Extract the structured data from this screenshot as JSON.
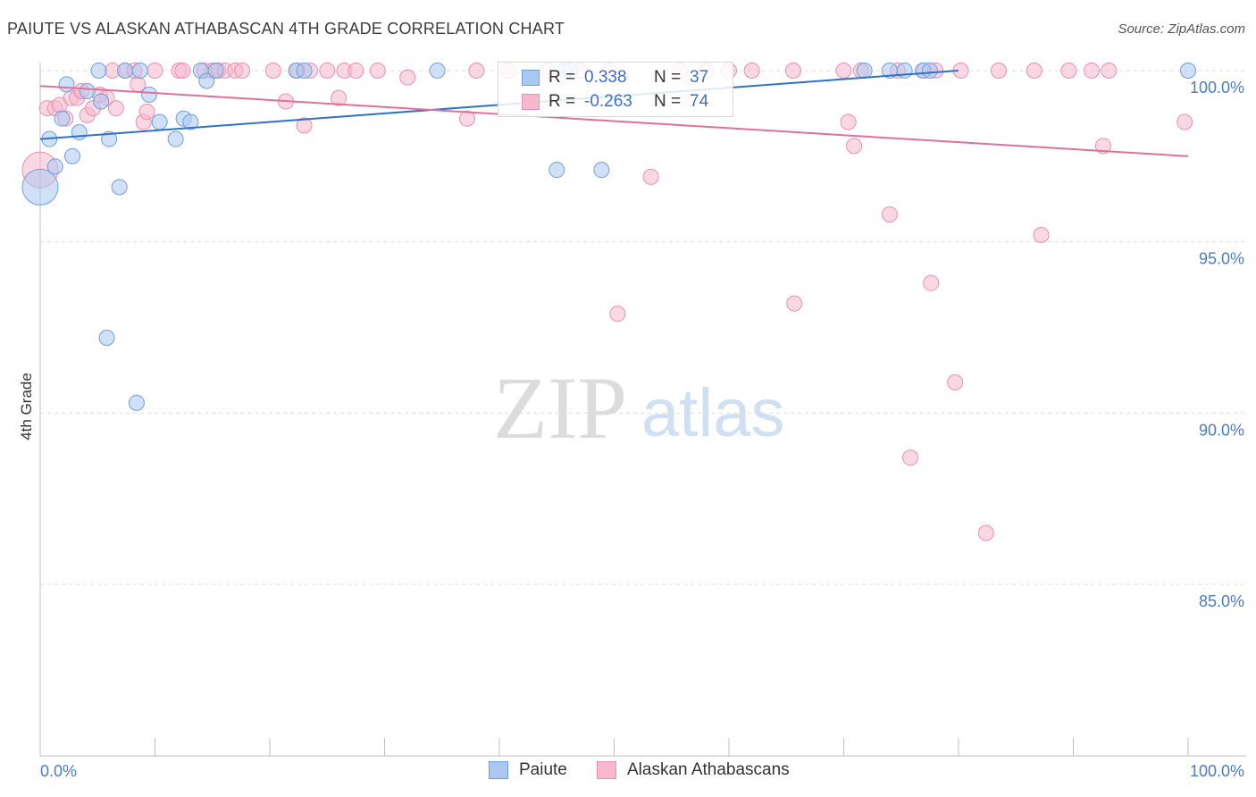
{
  "header": {
    "title": "PAIUTE VS ALASKAN ATHABASCAN 4TH GRADE CORRELATION CHART",
    "source": "Source: ZipAtlas.com"
  },
  "watermark": {
    "zip": "ZIP",
    "atlas": "atlas"
  },
  "legend": {
    "rows": [
      {
        "r_label": "R =",
        "r_value": "0.338",
        "n_label": "N =",
        "n_value": "37"
      },
      {
        "r_label": "R =",
        "r_value": "-0.263",
        "n_label": "N =",
        "n_value": "74"
      }
    ]
  },
  "bottom_legend": {
    "paiute": "Paiute",
    "alaskan": "Alaskan Athabascans"
  },
  "colors": {
    "paiute_fill": "#aac8f0",
    "paiute_stroke": "#6c9fe0",
    "paiute_line": "#2e72c8",
    "alaskan_fill": "#f6b8cc",
    "alaskan_stroke": "#eb8fae",
    "alaskan_line": "#e0709a",
    "tick_text": "#4a7cc9",
    "grid": "#dddddd"
  },
  "chart_data": {
    "type": "scatter",
    "title": "PAIUTE VS ALASKAN ATHABASCAN 4TH GRADE CORRELATION CHART",
    "xlabel": "",
    "ylabel": "4th Grade",
    "xlim": [
      0,
      100
    ],
    "ylim": [
      80.5,
      100.4
    ],
    "x_tick_labels": [
      "0.0%",
      "100.0%"
    ],
    "y_ticks": [
      {
        "value": 100,
        "label": "100.0%"
      },
      {
        "value": 95,
        "label": "95.0%"
      },
      {
        "value": 90,
        "label": "90.0%"
      },
      {
        "value": 85,
        "label": "85.0%"
      }
    ],
    "series": [
      {
        "name": "Paiute",
        "r": 0.338,
        "n": 37,
        "trend": {
          "x": [
            0,
            80
          ],
          "y": [
            98.0,
            100.0
          ]
        },
        "points": [
          {
            "x": 0.0,
            "y": 96.6,
            "big": true
          },
          {
            "x": 0.8,
            "y": 98.0
          },
          {
            "x": 1.3,
            "y": 97.2
          },
          {
            "x": 1.9,
            "y": 98.6
          },
          {
            "x": 2.3,
            "y": 99.6
          },
          {
            "x": 2.8,
            "y": 97.5
          },
          {
            "x": 3.4,
            "y": 98.2
          },
          {
            "x": 4.1,
            "y": 99.4
          },
          {
            "x": 5.1,
            "y": 100.0
          },
          {
            "x": 5.3,
            "y": 99.1
          },
          {
            "x": 6.0,
            "y": 98.0
          },
          {
            "x": 6.9,
            "y": 96.6
          },
          {
            "x": 7.4,
            "y": 100.0
          },
          {
            "x": 8.7,
            "y": 100.0
          },
          {
            "x": 9.5,
            "y": 99.3
          },
          {
            "x": 10.4,
            "y": 98.5
          },
          {
            "x": 11.8,
            "y": 98.0
          },
          {
            "x": 12.5,
            "y": 98.6
          },
          {
            "x": 13.1,
            "y": 98.5
          },
          {
            "x": 14.0,
            "y": 100.0
          },
          {
            "x": 14.5,
            "y": 99.7
          },
          {
            "x": 15.3,
            "y": 100.0
          },
          {
            "x": 22.3,
            "y": 100.0
          },
          {
            "x": 23.0,
            "y": 100.0
          },
          {
            "x": 34.6,
            "y": 100.0
          },
          {
            "x": 45.0,
            "y": 97.1
          },
          {
            "x": 45.7,
            "y": 100.0
          },
          {
            "x": 46.2,
            "y": 100.0
          },
          {
            "x": 48.9,
            "y": 97.1
          },
          {
            "x": 71.8,
            "y": 100.0
          },
          {
            "x": 74.0,
            "y": 100.0
          },
          {
            "x": 75.3,
            "y": 100.0
          },
          {
            "x": 76.9,
            "y": 100.0
          },
          {
            "x": 77.5,
            "y": 100.0
          },
          {
            "x": 100.0,
            "y": 100.0
          },
          {
            "x": 5.8,
            "y": 92.2
          },
          {
            "x": 8.4,
            "y": 90.3
          }
        ]
      },
      {
        "name": "Alaskan Athabascans",
        "r": -0.263,
        "n": 74,
        "trend": {
          "x": [
            0,
            100
          ],
          "y": [
            99.55,
            97.5
          ]
        },
        "points": [
          {
            "x": 0.0,
            "y": 97.1,
            "big": true
          },
          {
            "x": 0.6,
            "y": 98.9
          },
          {
            "x": 1.3,
            "y": 98.9
          },
          {
            "x": 1.7,
            "y": 99.0
          },
          {
            "x": 2.2,
            "y": 98.6
          },
          {
            "x": 2.7,
            "y": 99.2
          },
          {
            "x": 3.2,
            "y": 99.2
          },
          {
            "x": 3.6,
            "y": 99.4
          },
          {
            "x": 4.1,
            "y": 98.7
          },
          {
            "x": 4.6,
            "y": 98.9
          },
          {
            "x": 5.2,
            "y": 99.3
          },
          {
            "x": 5.8,
            "y": 99.2
          },
          {
            "x": 6.3,
            "y": 100.0
          },
          {
            "x": 6.6,
            "y": 98.9
          },
          {
            "x": 7.4,
            "y": 100.0
          },
          {
            "x": 8.2,
            "y": 100.0
          },
          {
            "x": 8.5,
            "y": 99.6
          },
          {
            "x": 9.0,
            "y": 98.5
          },
          {
            "x": 9.3,
            "y": 98.8
          },
          {
            "x": 10.0,
            "y": 100.0
          },
          {
            "x": 12.1,
            "y": 100.0
          },
          {
            "x": 12.4,
            "y": 100.0
          },
          {
            "x": 14.3,
            "y": 100.0
          },
          {
            "x": 15.0,
            "y": 100.0
          },
          {
            "x": 15.5,
            "y": 100.0
          },
          {
            "x": 16.1,
            "y": 100.0
          },
          {
            "x": 17.0,
            "y": 100.0
          },
          {
            "x": 17.6,
            "y": 100.0
          },
          {
            "x": 20.3,
            "y": 100.0
          },
          {
            "x": 21.4,
            "y": 99.1
          },
          {
            "x": 22.4,
            "y": 100.0
          },
          {
            "x": 23.0,
            "y": 98.4
          },
          {
            "x": 23.5,
            "y": 100.0
          },
          {
            "x": 25.0,
            "y": 100.0
          },
          {
            "x": 26.0,
            "y": 99.2
          },
          {
            "x": 26.5,
            "y": 100.0
          },
          {
            "x": 27.5,
            "y": 100.0
          },
          {
            "x": 29.4,
            "y": 100.0
          },
          {
            "x": 32.0,
            "y": 99.8
          },
          {
            "x": 37.2,
            "y": 98.6
          },
          {
            "x": 38.0,
            "y": 100.0
          },
          {
            "x": 40.8,
            "y": 100.0
          },
          {
            "x": 44.2,
            "y": 100.0
          },
          {
            "x": 47.0,
            "y": 100.0
          },
          {
            "x": 49.6,
            "y": 100.0
          },
          {
            "x": 50.3,
            "y": 92.9
          },
          {
            "x": 53.2,
            "y": 96.9
          },
          {
            "x": 55.7,
            "y": 100.0
          },
          {
            "x": 58.0,
            "y": 100.0
          },
          {
            "x": 60.0,
            "y": 100.0
          },
          {
            "x": 62.0,
            "y": 100.0
          },
          {
            "x": 65.6,
            "y": 100.0
          },
          {
            "x": 65.7,
            "y": 93.2
          },
          {
            "x": 70.0,
            "y": 100.0
          },
          {
            "x": 70.4,
            "y": 98.5
          },
          {
            "x": 70.9,
            "y": 97.8
          },
          {
            "x": 71.5,
            "y": 100.0
          },
          {
            "x": 74.0,
            "y": 95.8
          },
          {
            "x": 74.7,
            "y": 100.0
          },
          {
            "x": 75.8,
            "y": 88.7
          },
          {
            "x": 77.0,
            "y": 100.0
          },
          {
            "x": 77.6,
            "y": 93.8
          },
          {
            "x": 78.0,
            "y": 100.0
          },
          {
            "x": 79.7,
            "y": 90.9
          },
          {
            "x": 80.2,
            "y": 100.0
          },
          {
            "x": 82.4,
            "y": 86.5
          },
          {
            "x": 83.5,
            "y": 100.0
          },
          {
            "x": 86.6,
            "y": 100.0
          },
          {
            "x": 87.2,
            "y": 95.2
          },
          {
            "x": 89.6,
            "y": 100.0
          },
          {
            "x": 91.6,
            "y": 100.0
          },
          {
            "x": 92.6,
            "y": 97.8
          },
          {
            "x": 93.1,
            "y": 100.0
          },
          {
            "x": 99.7,
            "y": 98.5
          }
        ]
      }
    ]
  }
}
